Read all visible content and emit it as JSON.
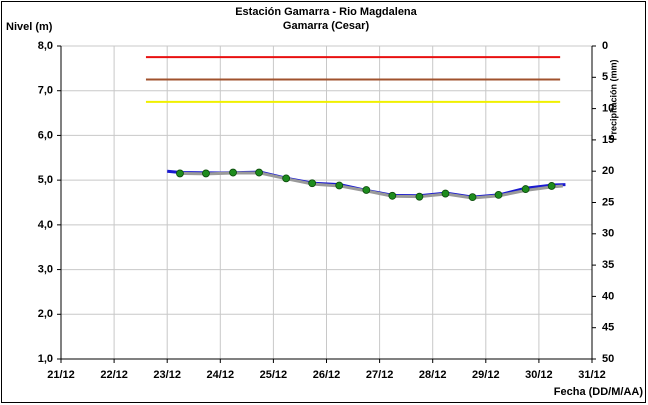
{
  "chart_data": {
    "type": "line",
    "title": "Estación Gamarra - Rio Magdalena",
    "subtitle": "Gamarra (Cesar)",
    "y_label": "Nivel (m)",
    "y2_label": "Precipitación (mm)",
    "x_label": "Fecha (DD/M/AA)",
    "xlim": [
      21,
      31
    ],
    "xticks": [
      {
        "value": 21,
        "label": "21/12"
      },
      {
        "value": 22,
        "label": "22/12"
      },
      {
        "value": 23,
        "label": "23/12"
      },
      {
        "value": 24,
        "label": "24/12"
      },
      {
        "value": 25,
        "label": "25/12"
      },
      {
        "value": 26,
        "label": "26/12"
      },
      {
        "value": 27,
        "label": "27/12"
      },
      {
        "value": 28,
        "label": "28/12"
      },
      {
        "value": 29,
        "label": "29/12"
      },
      {
        "value": 30,
        "label": "30/12"
      },
      {
        "value": 31,
        "label": "31/12"
      }
    ],
    "ylim": [
      1,
      8
    ],
    "yticks": [
      {
        "value": 1,
        "label": "1,0"
      },
      {
        "value": 2,
        "label": "2,0"
      },
      {
        "value": 3,
        "label": "3,0"
      },
      {
        "value": 4,
        "label": "4,0"
      },
      {
        "value": 5,
        "label": "5,0"
      },
      {
        "value": 6,
        "label": "6,0"
      },
      {
        "value": 7,
        "label": "7,0"
      },
      {
        "value": 8,
        "label": "8,0"
      }
    ],
    "y2lim": [
      0,
      50
    ],
    "y2_inverted": true,
    "y2ticks": [
      0,
      5,
      10,
      15,
      20,
      25,
      30,
      35,
      40,
      45,
      50
    ],
    "grid": true,
    "hline_range": [
      22.6,
      30.4
    ],
    "hlines": [
      {
        "value": 7.75,
        "color": "#e81010"
      },
      {
        "value": 7.25,
        "color": "#a0522d"
      },
      {
        "value": 6.75,
        "color": "#f0f000"
      }
    ],
    "series": [
      {
        "style": "line",
        "color": "#1a1ad0",
        "width": 3,
        "x": [
          23.0,
          23.25,
          24.0,
          24.75,
          25.25,
          25.75,
          26.25,
          26.75,
          27.25,
          27.75,
          28.25,
          28.75,
          29.25,
          29.75,
          30.25,
          30.5
        ],
        "values": [
          5.2,
          5.17,
          5.16,
          5.18,
          5.04,
          4.93,
          4.9,
          4.77,
          4.66,
          4.65,
          4.71,
          4.62,
          4.67,
          4.82,
          4.89,
          4.9
        ]
      },
      {
        "style": "line",
        "color": "#9a9a9a",
        "width": 3,
        "x": [
          23.2,
          23.75,
          24.25,
          24.75,
          25.25,
          25.75,
          26.25,
          26.75,
          27.25,
          27.75,
          28.25,
          28.75,
          29.25,
          29.75,
          30.25,
          30.45
        ],
        "values": [
          5.15,
          5.14,
          5.16,
          5.16,
          5.03,
          4.91,
          4.87,
          4.76,
          4.64,
          4.63,
          4.69,
          4.6,
          4.65,
          4.77,
          4.85,
          4.87
        ]
      },
      {
        "style": "points",
        "color": "#1e8c1e",
        "x": [
          23.24,
          23.73,
          24.24,
          24.73,
          25.24,
          25.73,
          26.24,
          26.75,
          27.24,
          27.75,
          28.24,
          28.75,
          29.24,
          29.75,
          30.24
        ],
        "values": [
          5.15,
          5.15,
          5.17,
          5.17,
          5.04,
          4.93,
          4.88,
          4.78,
          4.65,
          4.63,
          4.7,
          4.62,
          4.67,
          4.8,
          4.87
        ]
      }
    ]
  }
}
